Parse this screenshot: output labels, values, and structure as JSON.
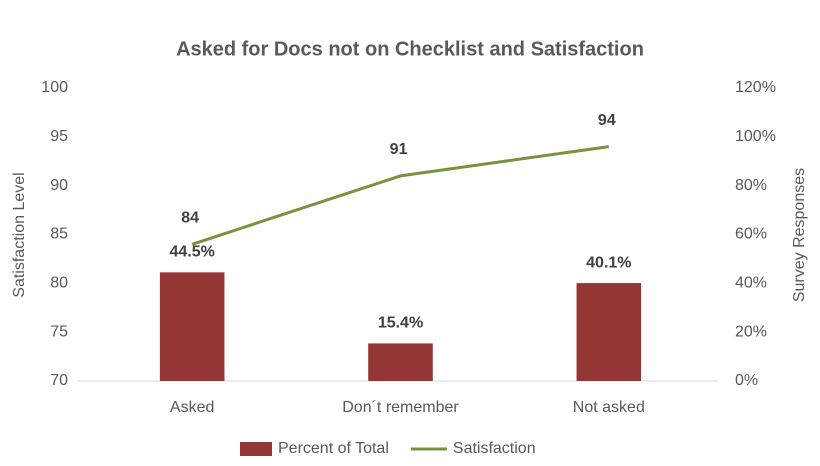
{
  "chart_data": {
    "type": "bar-line",
    "title": "Asked for Docs not on Checklist and Satisfaction",
    "y_label": "Satisfaction Level",
    "y2_label": "Survey Responses",
    "categories": [
      "Asked",
      "Don´t remember",
      "Not asked"
    ],
    "series": [
      {
        "name": "Percent of Total",
        "type": "bar",
        "axis": "y2",
        "color": "#943634",
        "values": [
          44.5,
          15.4,
          40.1
        ],
        "value_labels": [
          "44.5%",
          "15.4%",
          "40.1%"
        ]
      },
      {
        "name": "Satisfaction",
        "type": "line",
        "color": "#77933c",
        "values": [
          84,
          91,
          94
        ]
      }
    ],
    "ylim": [
      70,
      100
    ],
    "yticks": [
      70,
      75,
      80,
      85,
      90,
      95,
      100
    ],
    "y2lim": [
      0,
      120
    ],
    "y2ticks": [
      {
        "value": 0,
        "label": "0%"
      },
      {
        "value": 20,
        "label": "20%"
      },
      {
        "value": 40,
        "label": "40%"
      },
      {
        "value": 60,
        "label": "60%"
      },
      {
        "value": 80,
        "label": "80%"
      },
      {
        "value": 100,
        "label": "100%"
      },
      {
        "value": 120,
        "label": "120%"
      }
    ],
    "grid": false,
    "legend": "bottom"
  }
}
